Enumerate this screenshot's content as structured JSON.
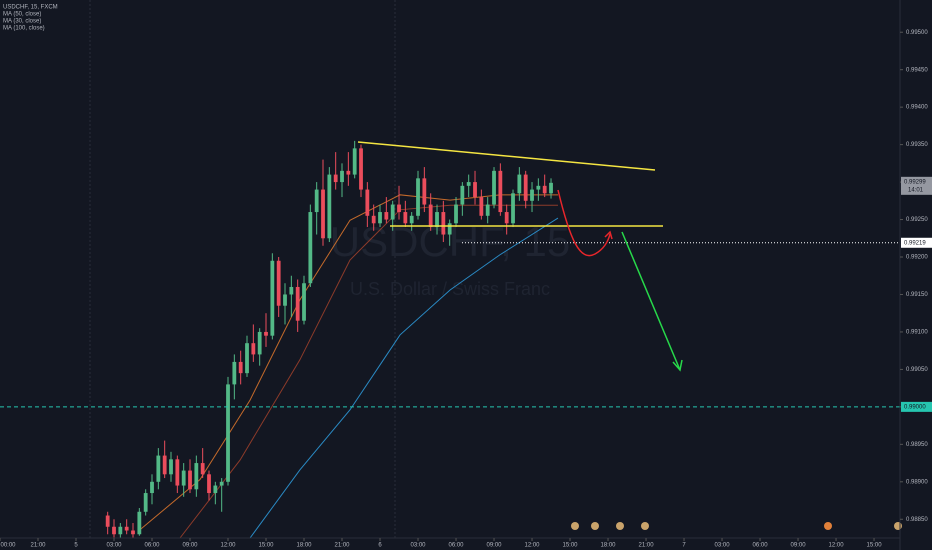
{
  "chart_data": {
    "type": "candlestick",
    "title": "USDCHF, 15, FXCM",
    "watermark": "USDCHF, 15",
    "watermark_subtitle": "U.S. Dollar / Swiss Franc",
    "up_color": "#53b987",
    "down_color": "#eb4d5c",
    "x": [
      2.5,
      3,
      3.5,
      4,
      4.5,
      5,
      5.5,
      6,
      6.5,
      7,
      7.5,
      8,
      8.5,
      9,
      9.5,
      10,
      10.5,
      11,
      11.5,
      12,
      12.5,
      13,
      13.5,
      14,
      14.5,
      15,
      15.5,
      16,
      16.5,
      17,
      17.5,
      18,
      18.5,
      19,
      19.5,
      20,
      20.5,
      21,
      21.5,
      22,
      22.5,
      23,
      23.5,
      24,
      24.5,
      25,
      25.5,
      26,
      26.5,
      27,
      27.5,
      28,
      28.5,
      29,
      29.5,
      30,
      30.5,
      31,
      31.5,
      32,
      32.5,
      33,
      33.5,
      34,
      34.5,
      35,
      35.5,
      36,
      36.5,
      37,
      37.5
    ],
    "open": [
      0.98855,
      0.9884,
      0.9883,
      0.9884,
      0.98835,
      0.9883,
      0.9886,
      0.98885,
      0.989,
      0.98935,
      0.9891,
      0.9893,
      0.98895,
      0.98915,
      0.9889,
      0.98925,
      0.9891,
      0.98885,
      0.98895,
      0.989,
      0.9903,
      0.9906,
      0.99045,
      0.99085,
      0.9907,
      0.991,
      0.99095,
      0.99195,
      0.99135,
      0.9915,
      0.9916,
      0.99115,
      0.99165,
      0.9926,
      0.9929,
      0.99225,
      0.9931,
      0.993,
      0.99315,
      0.9931,
      0.99345,
      0.9929,
      0.99255,
      0.99245,
      0.9926,
      0.9925,
      0.9927,
      0.9926,
      0.99245,
      0.99255,
      0.99305,
      0.9927,
      0.9924,
      0.9926,
      0.9923,
      0.99245,
      0.9927,
      0.99295,
      0.993,
      0.9928,
      0.99255,
      0.9927,
      0.99315,
      0.9926,
      0.99245,
      0.99285,
      0.9931,
      0.99275,
      0.9929,
      0.99295,
      0.99285
    ],
    "high": [
      0.9886,
      0.9885,
      0.98845,
      0.9885,
      0.98845,
      0.98865,
      0.9889,
      0.9891,
      0.98945,
      0.98955,
      0.9894,
      0.98935,
      0.98925,
      0.9893,
      0.98935,
      0.98945,
      0.98915,
      0.989,
      0.98905,
      0.9904,
      0.9907,
      0.99075,
      0.99095,
      0.9911,
      0.99105,
      0.99125,
      0.99205,
      0.992,
      0.99165,
      0.99175,
      0.9917,
      0.99175,
      0.9927,
      0.993,
      0.9933,
      0.9932,
      0.9934,
      0.99325,
      0.9934,
      0.99355,
      0.9935,
      0.993,
      0.9927,
      0.9927,
      0.9928,
      0.99275,
      0.99295,
      0.99275,
      0.9926,
      0.99315,
      0.9932,
      0.99285,
      0.9927,
      0.99275,
      0.9925,
      0.9928,
      0.993,
      0.9931,
      0.99315,
      0.9929,
      0.9928,
      0.9932,
      0.99325,
      0.9927,
      0.9929,
      0.9932,
      0.99315,
      0.993,
      0.99305,
      0.9931,
      0.99305
    ],
    "low": [
      0.9883,
      0.98825,
      0.98825,
      0.9883,
      0.98825,
      0.98828,
      0.98855,
      0.9887,
      0.9889,
      0.98905,
      0.989,
      0.98885,
      0.9888,
      0.98885,
      0.9888,
      0.98905,
      0.98875,
      0.9887,
      0.9886,
      0.98895,
      0.9901,
      0.9903,
      0.9904,
      0.9906,
      0.99055,
      0.9908,
      0.9909,
      0.9912,
      0.9911,
      0.9912,
      0.991,
      0.9911,
      0.9916,
      0.9923,
      0.99215,
      0.9922,
      0.9929,
      0.9928,
      0.99295,
      0.99305,
      0.9928,
      0.9924,
      0.99235,
      0.9924,
      0.99245,
      0.99235,
      0.9925,
      0.9924,
      0.99235,
      0.9925,
      0.9926,
      0.99235,
      0.9923,
      0.9922,
      0.99215,
      0.9924,
      0.99255,
      0.9928,
      0.9927,
      0.9925,
      0.99245,
      0.99265,
      0.99255,
      0.9923,
      0.9924,
      0.99275,
      0.99265,
      0.9926,
      0.99275,
      0.9928,
      0.99278
    ],
    "close": [
      0.9884,
      0.9883,
      0.9884,
      0.98835,
      0.9883,
      0.9886,
      0.98885,
      0.989,
      0.98935,
      0.9891,
      0.9893,
      0.98895,
      0.98915,
      0.9889,
      0.98925,
      0.9891,
      0.98885,
      0.98895,
      0.989,
      0.9903,
      0.9906,
      0.99045,
      0.99085,
      0.9907,
      0.991,
      0.99095,
      0.99195,
      0.99135,
      0.9915,
      0.9916,
      0.99115,
      0.99165,
      0.9926,
      0.9929,
      0.99225,
      0.9931,
      0.993,
      0.99315,
      0.9931,
      0.99345,
      0.9929,
      0.99255,
      0.99245,
      0.9926,
      0.9925,
      0.9927,
      0.9926,
      0.99245,
      0.99255,
      0.99305,
      0.9927,
      0.9924,
      0.9926,
      0.9923,
      0.99245,
      0.9927,
      0.99295,
      0.993,
      0.9928,
      0.99255,
      0.9927,
      0.99315,
      0.9926,
      0.99245,
      0.99285,
      0.9931,
      0.99275,
      0.9929,
      0.99295,
      0.99285,
      0.99299
    ],
    "series": [
      {
        "name": "MA (50, close)",
        "color": "#8d3b2a",
        "x": [
          8.21,
          12.95,
          17.68,
          21.63,
          25.58,
          29.53,
          33.47,
          38.05
        ],
        "values": [
          0.98825,
          0.98929,
          0.99063,
          0.99196,
          0.99263,
          0.99269,
          0.99269,
          0.99269
        ]
      },
      {
        "name": "MA (30, close)",
        "color": "#c46a2b",
        "x": [
          5.05,
          9.79,
          13.74,
          17.68,
          21.63,
          25.58,
          29.53,
          33.47,
          38.05
        ],
        "values": [
          0.98836,
          0.98903,
          0.99009,
          0.99143,
          0.99249,
          0.99283,
          0.99276,
          0.99283,
          0.99283
        ]
      },
      {
        "name": "MA (100, close)",
        "color": "#2a8ac4",
        "x": [
          13.74,
          17.68,
          21.63,
          25.58,
          29.53,
          33.47,
          38.05
        ],
        "values": [
          0.98825,
          0.98916,
          0.98996,
          0.99096,
          0.99156,
          0.99203,
          0.99252
        ]
      }
    ],
    "xlim": [
      -6,
      65.05
    ],
    "xticks": [
      {
        "value": -6,
        "label": "00:00"
      },
      {
        "value": -3,
        "label": "21:00"
      },
      {
        "value": 0,
        "label": "5"
      },
      {
        "value": 3,
        "label": "03:00"
      },
      {
        "value": 6,
        "label": "06:00"
      },
      {
        "value": 9,
        "label": "09:00"
      },
      {
        "value": 12,
        "label": "12:00"
      },
      {
        "value": 15,
        "label": "15:00"
      },
      {
        "value": 18,
        "label": "18:00"
      },
      {
        "value": 21,
        "label": "21:00"
      },
      {
        "value": 24,
        "label": "6"
      },
      {
        "value": 27,
        "label": "03:00"
      },
      {
        "value": 30,
        "label": "06:00"
      },
      {
        "value": 33,
        "label": "09:00"
      },
      {
        "value": 36,
        "label": "12:00"
      },
      {
        "value": 39,
        "label": "15:00"
      },
      {
        "value": 42,
        "label": "18:00"
      },
      {
        "value": 45,
        "label": "21:00"
      },
      {
        "value": 48,
        "label": "7"
      },
      {
        "value": 51,
        "label": "03:00"
      },
      {
        "value": 54,
        "label": "06:00"
      },
      {
        "value": 57,
        "label": "09:00"
      },
      {
        "value": 60,
        "label": "12:00"
      },
      {
        "value": 63,
        "label": "15:00"
      }
    ],
    "ylim": [
      0.98825,
      0.99543
    ],
    "yticks": [
      {
        "value": 0.995,
        "label": "0.99500"
      },
      {
        "value": 0.9945,
        "label": "0.99450"
      },
      {
        "value": 0.994,
        "label": "0.99400"
      },
      {
        "value": 0.9935,
        "label": "0.99350"
      },
      {
        "value": 0.993,
        "label": "0.99300"
      },
      {
        "value": 0.9925,
        "label": "0.99250"
      },
      {
        "value": 0.992,
        "label": "0.99200"
      },
      {
        "value": 0.9915,
        "label": "0.99150"
      },
      {
        "value": 0.991,
        "label": "0.99100"
      },
      {
        "value": 0.9905,
        "label": "0.99050"
      },
      {
        "value": 0.99,
        "label": "0.99000"
      },
      {
        "value": 0.9895,
        "label": "0.98950"
      },
      {
        "value": 0.989,
        "label": "0.98900"
      },
      {
        "value": 0.9885,
        "label": "0.98850"
      }
    ],
    "price_lines": [
      {
        "value": 0.99219,
        "color": "#ffffff"
      },
      {
        "value": 0.99,
        "label": "0.99000",
        "color": "#26c6b0"
      }
    ],
    "last_price": 0.99299,
    "countdown": "14:01"
  }
}
